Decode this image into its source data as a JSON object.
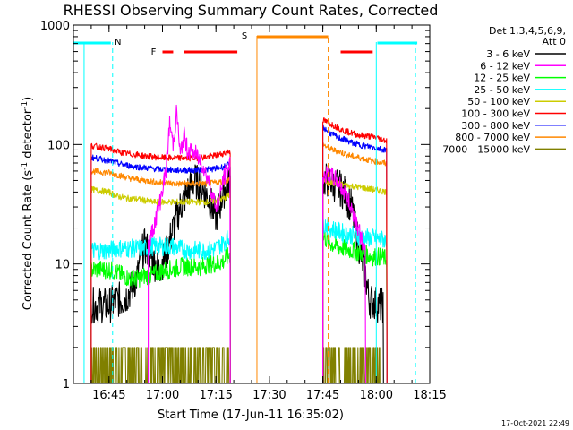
{
  "chart_data": {
    "type": "line",
    "title": "RHESSI Observing Summary Count Rates, Corrected",
    "xlabel": "Start Time (17-Jun-11 16:35:02)",
    "ylabel": "Corrected Count Rate (s",
    "ylabel_sup1": "-1",
    "ylabel_mid": " detector",
    "ylabel_sup2": "-1",
    "ylabel_end": ")",
    "yscale": "log",
    "ylim": [
      1,
      1000
    ],
    "xlim_minutes_after_1635": [
      0,
      100
    ],
    "x_ticks": [
      {
        "label": "16:45",
        "t": 10
      },
      {
        "label": "17:00",
        "t": 25
      },
      {
        "label": "17:15",
        "t": 40
      },
      {
        "label": "17:30",
        "t": 55
      },
      {
        "label": "17:45",
        "t": 70
      },
      {
        "label": "18:00",
        "t": 85
      },
      {
        "label": "18:15",
        "t": 100
      }
    ],
    "y_ticks": [
      {
        "label": "1",
        "v": 1
      },
      {
        "label": "10",
        "v": 10
      },
      {
        "label": "100",
        "v": 100
      },
      {
        "label": "1000",
        "v": 1000
      }
    ],
    "legend_header": [
      "Det 1,3,4,5,6,9,",
      "Att 0"
    ],
    "legend_position": "right",
    "series": [
      {
        "name": "3 - 6 keV",
        "color": "#000000",
        "seg1": [
          [
            5,
            4.5
          ],
          [
            10,
            4.5
          ],
          [
            12,
            5
          ],
          [
            14,
            5
          ],
          [
            16,
            6
          ],
          [
            18,
            8
          ],
          [
            19,
            12
          ],
          [
            20,
            14
          ],
          [
            21,
            13
          ],
          [
            22,
            11
          ],
          [
            24,
            9
          ],
          [
            26,
            12
          ],
          [
            28,
            20
          ],
          [
            30,
            30
          ],
          [
            32,
            40
          ],
          [
            34,
            50
          ],
          [
            36,
            45
          ],
          [
            38,
            35
          ],
          [
            40,
            25
          ],
          [
            41,
            30
          ],
          [
            42,
            40
          ],
          [
            44,
            50
          ]
        ],
        "seg2": [
          [
            70,
            50
          ],
          [
            72,
            50
          ],
          [
            74,
            45
          ],
          [
            76,
            40
          ],
          [
            78,
            30
          ],
          [
            80,
            15
          ],
          [
            82,
            8
          ],
          [
            83,
            5
          ],
          [
            86,
            4.5
          ],
          [
            87,
            4.5
          ]
        ]
      },
      {
        "name": "6 - 12 keV",
        "color": "#ff00ff",
        "seg1": [
          [
            21,
            14
          ],
          [
            22,
            18
          ],
          [
            24,
            30
          ],
          [
            26,
            60
          ],
          [
            27,
            150
          ],
          [
            28,
            100
          ],
          [
            29,
            190
          ],
          [
            30,
            80
          ],
          [
            31,
            120
          ],
          [
            32,
            90
          ],
          [
            34,
            85
          ],
          [
            36,
            70
          ],
          [
            38,
            50
          ],
          [
            40,
            30
          ],
          [
            41,
            35
          ],
          [
            42,
            50
          ],
          [
            44,
            70
          ]
        ],
        "seg2": [
          [
            70,
            55
          ],
          [
            72,
            55
          ],
          [
            74,
            50
          ],
          [
            76,
            40
          ],
          [
            78,
            30
          ],
          [
            80,
            20
          ],
          [
            82,
            12
          ]
        ]
      },
      {
        "name": "12 - 25 keV",
        "color": "#00ff00",
        "seg1": [
          [
            5,
            9
          ],
          [
            10,
            9
          ],
          [
            12,
            8.5
          ],
          [
            14,
            8
          ],
          [
            16,
            7.5
          ],
          [
            18,
            7.5
          ],
          [
            20,
            8
          ],
          [
            22,
            8
          ],
          [
            24,
            8.5
          ],
          [
            26,
            9
          ],
          [
            28,
            9
          ],
          [
            30,
            9.5
          ],
          [
            32,
            9.5
          ],
          [
            34,
            9.5
          ],
          [
            36,
            9.5
          ],
          [
            38,
            10
          ],
          [
            40,
            10
          ],
          [
            42,
            10.5
          ],
          [
            44,
            12
          ]
        ],
        "seg2": [
          [
            70,
            17
          ],
          [
            72,
            15
          ],
          [
            74,
            14
          ],
          [
            76,
            13.5
          ],
          [
            78,
            13
          ],
          [
            80,
            12.5
          ],
          [
            82,
            12
          ],
          [
            84,
            11.5
          ],
          [
            86,
            11.5
          ],
          [
            88,
            11
          ]
        ]
      },
      {
        "name": "25 - 50 keV",
        "color": "#00ffff",
        "seg1": [
          [
            5,
            13
          ],
          [
            10,
            13
          ],
          [
            12,
            13.5
          ],
          [
            14,
            13.5
          ],
          [
            16,
            13.5
          ],
          [
            18,
            13.5
          ],
          [
            20,
            13.5
          ],
          [
            22,
            14
          ],
          [
            24,
            14
          ],
          [
            26,
            14
          ],
          [
            28,
            14
          ],
          [
            30,
            13.5
          ],
          [
            32,
            13
          ],
          [
            34,
            13
          ],
          [
            36,
            13
          ],
          [
            38,
            13
          ],
          [
            40,
            13.5
          ],
          [
            42,
            15
          ],
          [
            44,
            17
          ]
        ],
        "seg2": [
          [
            70,
            22
          ],
          [
            72,
            20
          ],
          [
            74,
            19
          ],
          [
            76,
            18
          ],
          [
            78,
            17.5
          ],
          [
            80,
            17
          ],
          [
            82,
            16.5
          ],
          [
            84,
            16.5
          ],
          [
            86,
            16
          ],
          [
            88,
            16
          ]
        ]
      },
      {
        "name": "50 - 100 keV",
        "color": "#cccc00",
        "seg1": [
          [
            5,
            42
          ],
          [
            10,
            40
          ],
          [
            12,
            37
          ],
          [
            14,
            36
          ],
          [
            16,
            35
          ],
          [
            18,
            35
          ],
          [
            20,
            34
          ],
          [
            22,
            33
          ],
          [
            24,
            33
          ],
          [
            26,
            33
          ],
          [
            28,
            33
          ],
          [
            30,
            33
          ],
          [
            32,
            33
          ],
          [
            34,
            33
          ],
          [
            36,
            33
          ],
          [
            38,
            33
          ],
          [
            40,
            34
          ],
          [
            42,
            35
          ],
          [
            44,
            38
          ]
        ],
        "seg2": [
          [
            70,
            50
          ],
          [
            72,
            48
          ],
          [
            74,
            47
          ],
          [
            76,
            46
          ],
          [
            78,
            45
          ],
          [
            80,
            44
          ],
          [
            82,
            43
          ],
          [
            84,
            42
          ],
          [
            86,
            41
          ],
          [
            88,
            40
          ]
        ]
      },
      {
        "name": "100 - 300 keV",
        "color": "#ff0000",
        "seg1": [
          [
            5,
            98
          ],
          [
            10,
            92
          ],
          [
            12,
            88
          ],
          [
            14,
            85
          ],
          [
            16,
            83
          ],
          [
            18,
            82
          ],
          [
            20,
            80
          ],
          [
            22,
            79
          ],
          [
            24,
            78
          ],
          [
            26,
            77
          ],
          [
            28,
            77
          ],
          [
            30,
            77
          ],
          [
            32,
            77
          ],
          [
            34,
            77
          ],
          [
            36,
            78
          ],
          [
            38,
            79
          ],
          [
            40,
            81
          ],
          [
            42,
            84
          ],
          [
            44,
            88
          ]
        ],
        "seg2": [
          [
            70,
            160
          ],
          [
            72,
            150
          ],
          [
            74,
            140
          ],
          [
            76,
            130
          ],
          [
            78,
            125
          ],
          [
            80,
            120
          ],
          [
            82,
            118
          ],
          [
            84,
            116
          ],
          [
            86,
            112
          ],
          [
            88,
            108
          ]
        ]
      },
      {
        "name": "300 - 800 keV",
        "color": "#0000ff",
        "seg1": [
          [
            5,
            78
          ],
          [
            10,
            73
          ],
          [
            12,
            70
          ],
          [
            14,
            68
          ],
          [
            16,
            66
          ],
          [
            18,
            65
          ],
          [
            20,
            64
          ],
          [
            22,
            63
          ],
          [
            24,
            62
          ],
          [
            26,
            62
          ],
          [
            28,
            61
          ],
          [
            30,
            61
          ],
          [
            32,
            61
          ],
          [
            34,
            61
          ],
          [
            36,
            61
          ],
          [
            38,
            62
          ],
          [
            40,
            63
          ],
          [
            42,
            65
          ],
          [
            44,
            68
          ]
        ],
        "seg2": [
          [
            70,
            140
          ],
          [
            72,
            125
          ],
          [
            74,
            115
          ],
          [
            76,
            110
          ],
          [
            78,
            104
          ],
          [
            80,
            100
          ],
          [
            82,
            97
          ],
          [
            84,
            95
          ],
          [
            86,
            92
          ],
          [
            88,
            90
          ]
        ]
      },
      {
        "name": "800 - 7000 keV",
        "color": "#ff8800",
        "seg1": [
          [
            5,
            60
          ],
          [
            10,
            58
          ],
          [
            12,
            56
          ],
          [
            14,
            54
          ],
          [
            16,
            52
          ],
          [
            18,
            51
          ],
          [
            20,
            50
          ],
          [
            22,
            49
          ],
          [
            24,
            48
          ],
          [
            26,
            48
          ],
          [
            28,
            47
          ],
          [
            30,
            47
          ],
          [
            32,
            47
          ],
          [
            34,
            47
          ],
          [
            36,
            47
          ],
          [
            38,
            47
          ],
          [
            40,
            48
          ],
          [
            42,
            49
          ],
          [
            44,
            51
          ]
        ],
        "seg2": [
          [
            70,
            100
          ],
          [
            72,
            92
          ],
          [
            74,
            88
          ],
          [
            76,
            84
          ],
          [
            78,
            80
          ],
          [
            80,
            78
          ],
          [
            82,
            75
          ],
          [
            84,
            73
          ],
          [
            86,
            71
          ],
          [
            88,
            69
          ]
        ]
      },
      {
        "name": "7000 - 15000 keV",
        "color": "#808000",
        "seg1": [
          [
            5,
            1.3
          ],
          [
            10,
            1.3
          ],
          [
            44,
            1.3
          ]
        ],
        "seg2": [
          [
            70,
            1.3
          ],
          [
            86,
            1.3
          ]
        ]
      }
    ],
    "flags": [
      {
        "label": "N",
        "color": "#00ffff"
      },
      {
        "label": "F",
        "color": "#ff0000"
      },
      {
        "label": "S",
        "color": "#ff8800"
      }
    ],
    "timestamp": "17-Oct-2021 22:49"
  }
}
